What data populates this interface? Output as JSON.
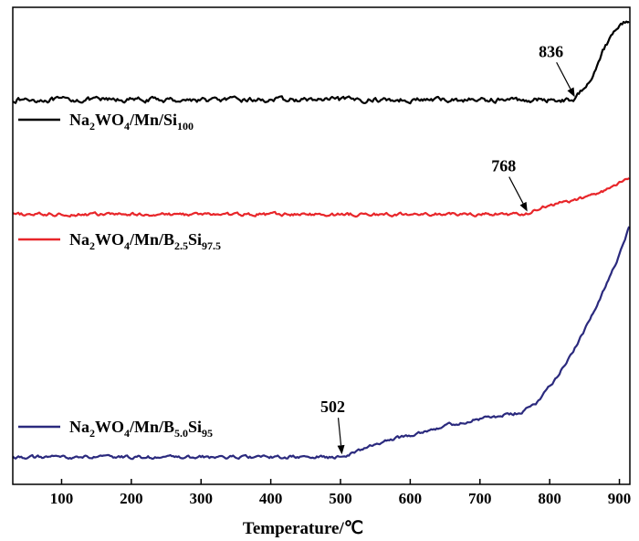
{
  "chart_data": {
    "type": "line",
    "title": "",
    "xlabel": "Temperature/℃",
    "ylabel": "",
    "xlim": [
      30,
      915
    ],
    "ylim": [
      0,
      100
    ],
    "x_ticks": [
      100,
      200,
      300,
      400,
      500,
      600,
      700,
      800,
      900
    ],
    "x_tick_labels": [
      "100",
      "200",
      "300",
      "400",
      "500",
      "600",
      "700",
      "800",
      "900"
    ],
    "y_ticks_visible": false,
    "grid": false,
    "legend_placement": "left, beside each curve",
    "series": [
      {
        "name": "Na2WO4/Mn/Si100",
        "legend_parts": [
          [
            "Na",
            "n"
          ],
          [
            "2",
            "sub"
          ],
          [
            "WO",
            "n"
          ],
          [
            "4",
            "sub"
          ],
          [
            "/Mn/Si",
            "n"
          ],
          [
            "100",
            "sub"
          ]
        ],
        "color": "#000000",
        "baseline": 80.6,
        "noise": 0.45,
        "points": [
          [
            30,
            80.6
          ],
          [
            836,
            80.6
          ],
          [
            860,
            85.5
          ],
          [
            880,
            92
          ],
          [
            895,
            95.5
          ],
          [
            905,
            96.8
          ],
          [
            915,
            97.3
          ]
        ]
      },
      {
        "name": "Na2WO4/Mn/B2.5Si97.5",
        "legend_parts": [
          [
            "Na",
            "n"
          ],
          [
            "2",
            "sub"
          ],
          [
            "WO",
            "n"
          ],
          [
            "4",
            "sub"
          ],
          [
            "/Mn/B",
            "n"
          ],
          [
            "2.5",
            "sub"
          ],
          [
            "Si",
            "n"
          ],
          [
            "97.5",
            "sub"
          ]
        ],
        "color": "#e8262a",
        "baseline": 56.6,
        "noise": 0.3,
        "points": [
          [
            30,
            56.6
          ],
          [
            768,
            56.6
          ],
          [
            780,
            57.4
          ],
          [
            800,
            58.6
          ],
          [
            830,
            59.4
          ],
          [
            860,
            60.5
          ],
          [
            890,
            62.3
          ],
          [
            915,
            64.5
          ]
        ]
      },
      {
        "name": "Na2WO4/Mn/B5.0Si95",
        "legend_parts": [
          [
            "Na",
            "n"
          ],
          [
            "2",
            "sub"
          ],
          [
            "WO",
            "n"
          ],
          [
            "4",
            "sub"
          ],
          [
            "/Mn/B",
            "n"
          ],
          [
            "5.0",
            "sub"
          ],
          [
            "Si",
            "n"
          ],
          [
            "95",
            "sub"
          ]
        ],
        "color": "#2b2a7e",
        "baseline": 5.7,
        "noise": 0.3,
        "points": [
          [
            30,
            5.7
          ],
          [
            502,
            5.7
          ],
          [
            530,
            7.3
          ],
          [
            560,
            8.9
          ],
          [
            600,
            10.4
          ],
          [
            650,
            12.3
          ],
          [
            700,
            13.7
          ],
          [
            760,
            15.0
          ],
          [
            780,
            17.0
          ],
          [
            810,
            22.5
          ],
          [
            840,
            29.5
          ],
          [
            870,
            38.0
          ],
          [
            895,
            46.5
          ],
          [
            915,
            54.5
          ]
        ]
      }
    ],
    "annotations": [
      {
        "text": "836",
        "x": 836,
        "series": 0
      },
      {
        "text": "768",
        "x": 768,
        "series": 1
      },
      {
        "text": "502",
        "x": 502,
        "series": 2
      }
    ]
  }
}
